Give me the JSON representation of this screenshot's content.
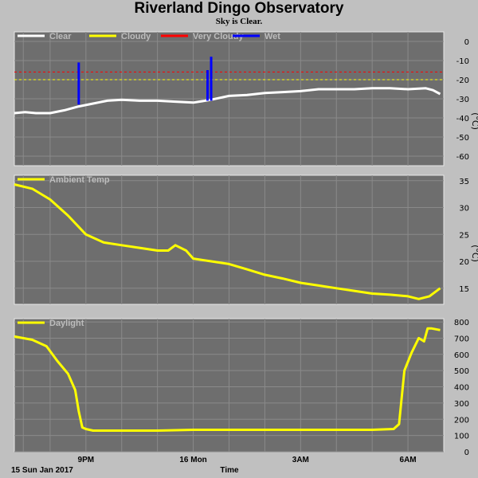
{
  "header": {
    "title": "Riverland Dingo Observatory",
    "subtitle": "Sky is Clear."
  },
  "colors": {
    "page_bg": "#c0c0c0",
    "plot_bg": "#6e6e6e",
    "grid": "#8a8a8a",
    "clear": "#ffffff",
    "cloudy": "#ffff00",
    "very_cloudy": "#ff0000",
    "wet": "#0000ff"
  },
  "chart_data": [
    {
      "type": "line",
      "name": "sky",
      "ylabel": "(°C)",
      "ylim": [
        -60,
        5
      ],
      "yticks": [
        "0",
        "-10",
        "-20",
        "-30",
        "-40",
        "-50",
        "-60"
      ],
      "grid": true,
      "legend_placement": "top-left",
      "legend": [
        {
          "label": "Clear",
          "color": "#ffffff"
        },
        {
          "label": "Cloudy",
          "color": "#ffff00"
        },
        {
          "label": "Very Cloudy",
          "color": "#ff0000"
        },
        {
          "label": "Wet",
          "color": "#0000ff"
        }
      ],
      "thresholds": [
        {
          "label": "Very Cloudy",
          "value": -16,
          "color": "#ff0000"
        },
        {
          "label": "Cloudy",
          "value": -20,
          "color": "#ffff00"
        }
      ],
      "series": [
        {
          "name": "Clear",
          "color": "#ffffff",
          "x": [
            0,
            0.3,
            0.6,
            1.0,
            1.4,
            1.8,
            2.2,
            2.6,
            3.0,
            3.5,
            4.0,
            4.5,
            5.0,
            5.5,
            6.0,
            6.5,
            7.0,
            7.5,
            8.0,
            8.5,
            9.0,
            9.5,
            10.0,
            10.5,
            11.0,
            11.5,
            11.7,
            11.9
          ],
          "values": [
            -37.5,
            -37,
            -37.5,
            -37.5,
            -36,
            -34,
            -32.5,
            -31,
            -30.5,
            -31,
            -31,
            -31.5,
            -32,
            -30.5,
            -28.5,
            -28,
            -27,
            -26.5,
            -26,
            -25,
            -25,
            -25,
            -24.5,
            -24.5,
            -25,
            -24.5,
            -25.5,
            -27.5
          ]
        },
        {
          "name": "Wet",
          "color": "#0000ff",
          "spikes": [
            {
              "x": 1.8,
              "from": -33,
              "to": -11
            },
            {
              "x": 5.4,
              "from": -31,
              "to": -15
            },
            {
              "x": 5.5,
              "from": -31,
              "to": -8
            }
          ]
        }
      ]
    },
    {
      "type": "line",
      "name": "ambient",
      "ylabel": "(°C)",
      "ylim": [
        12,
        36
      ],
      "yticks": [
        "35",
        "30",
        "25",
        "20",
        "15"
      ],
      "grid": true,
      "legend_placement": "top-left",
      "legend": [
        {
          "label": "Ambient Temp",
          "color": "#ffff00"
        }
      ],
      "series": [
        {
          "name": "Ambient Temp",
          "color": "#ffff00",
          "x": [
            0,
            0.5,
            1.0,
            1.5,
            2.0,
            2.5,
            3.0,
            3.5,
            4.0,
            4.3,
            4.5,
            4.8,
            5.0,
            5.5,
            6.0,
            6.5,
            7.0,
            7.5,
            8.0,
            8.5,
            9.0,
            9.5,
            10.0,
            10.5,
            11.0,
            11.3,
            11.6,
            11.9
          ],
          "values": [
            34.3,
            33.5,
            31.5,
            28.5,
            25,
            23.5,
            23,
            22.5,
            22,
            22,
            23,
            22,
            20.5,
            20,
            19.5,
            18.5,
            17.5,
            16.8,
            16,
            15.5,
            15,
            14.5,
            14,
            13.8,
            13.5,
            13,
            13.5,
            15
          ]
        }
      ]
    },
    {
      "type": "line",
      "name": "daylight",
      "ylabel": "",
      "ylim": [
        0,
        850
      ],
      "yticks": [
        "800",
        "700",
        "600",
        "500",
        "400",
        "300",
        "200",
        "100",
        "0"
      ],
      "grid": true,
      "legend_placement": "top-left",
      "legend": [
        {
          "label": "Daylight",
          "color": "#ffff00"
        }
      ],
      "series": [
        {
          "name": "Daylight",
          "color": "#ffff00",
          "x": [
            0,
            0.5,
            0.9,
            1.2,
            1.5,
            1.7,
            1.8,
            1.9,
            2.0,
            2.2,
            3.0,
            4.0,
            5.0,
            6.0,
            7.0,
            8.0,
            9.0,
            10.0,
            10.6,
            10.75,
            10.9,
            11.1,
            11.3,
            11.45,
            11.55,
            11.65,
            11.9
          ],
          "values": [
            710,
            690,
            650,
            560,
            480,
            380,
            250,
            150,
            140,
            130,
            130,
            130,
            135,
            135,
            135,
            135,
            135,
            135,
            140,
            170,
            500,
            610,
            700,
            680,
            760,
            760,
            750
          ]
        }
      ]
    }
  ],
  "x_axis": {
    "xlim": [
      0,
      12
    ],
    "tick_hours": [
      0.25,
      1.0,
      2.0,
      3.0,
      4.0,
      5.0,
      6.0,
      7.0,
      8.0,
      9.0,
      10.0,
      11.0
    ],
    "labels": [
      {
        "text": "9PM",
        "x": 2.0
      },
      {
        "text": "16 Mon",
        "x": 5.0
      },
      {
        "text": "3AM",
        "x": 8.0
      },
      {
        "text": "6AM",
        "x": 11.0
      }
    ],
    "date_label": "15 Sun Jan 2017",
    "title": "Time"
  }
}
